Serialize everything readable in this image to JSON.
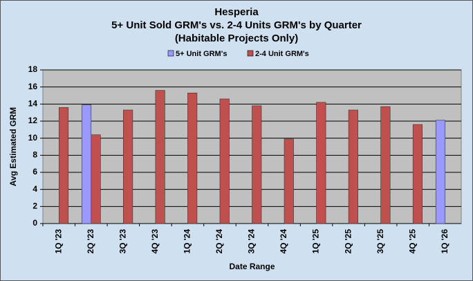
{
  "chart_data": {
    "type": "bar",
    "title": [
      "Hesperia",
      "5+ Unit Sold GRM's vs. 2-4 Units GRM's by Quarter",
      "(Habitable Projects Only)"
    ],
    "x_label": "Date Range",
    "y_label": "Avg  Estimated  GRM",
    "categories": [
      "1Q '23",
      "2Q '23",
      "3Q '23",
      "4Q '23",
      "1Q '24",
      "2Q '24",
      "3Q '24",
      "4Q '24",
      "1Q '25",
      "2Q '25",
      "3Q '25",
      "4Q '25",
      "1Q '26"
    ],
    "series": [
      {
        "name": "5+ Unit GRM's",
        "color": "#9999ff",
        "values": [
          null,
          13.9,
          null,
          null,
          null,
          null,
          null,
          null,
          null,
          null,
          null,
          null,
          12.1
        ]
      },
      {
        "name": "2-4 Unit GRM's",
        "color": "#c0504d",
        "values": [
          13.6,
          10.4,
          13.3,
          15.6,
          15.3,
          14.6,
          13.8,
          9.9,
          14.2,
          13.3,
          13.7,
          11.6,
          null
        ]
      }
    ],
    "ylim": [
      0,
      18
    ],
    "yticks": [
      0,
      2,
      4,
      6,
      8,
      10,
      12,
      14,
      16,
      18
    ],
    "grid": true
  }
}
